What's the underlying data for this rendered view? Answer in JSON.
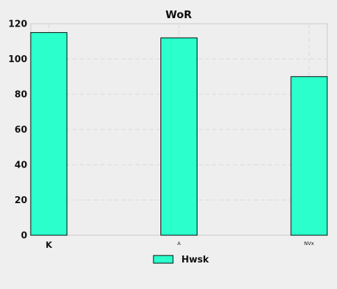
{
  "chart_data": {
    "type": "bar",
    "title": "WoR",
    "xlabel": "",
    "ylabel": "",
    "categories": [
      "K",
      "A",
      "NVx"
    ],
    "series": [
      {
        "name": "Hwsk",
        "values": [
          115,
          112,
          90
        ]
      }
    ],
    "ylim": [
      0,
      120
    ],
    "yticks": [
      0,
      20,
      40,
      60,
      80,
      100,
      120
    ],
    "grid": true,
    "legend_position": "bottom-center",
    "colors": {
      "bar_fill": "#2bffcc",
      "bar_stroke": "#000000",
      "plot_bg": "#eeeeee",
      "grid": "#dddddd",
      "page_bg": "#efefef",
      "axis": "#c8c8c8"
    }
  }
}
